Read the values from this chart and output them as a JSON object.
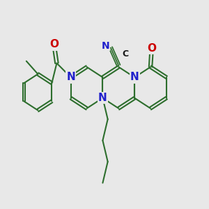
{
  "bg_color": "#e8e8e8",
  "bond_color": "#2d6e2d",
  "N_color": "#2020cc",
  "O_color": "#cc0000",
  "C_color": "#1a1a1a",
  "lw": 1.5,
  "dbo": 0.055,
  "fig_width": 3.0,
  "fig_height": 3.0,
  "xlim": [
    0.5,
    9.5
  ],
  "ylim": [
    1.5,
    9.5
  ]
}
